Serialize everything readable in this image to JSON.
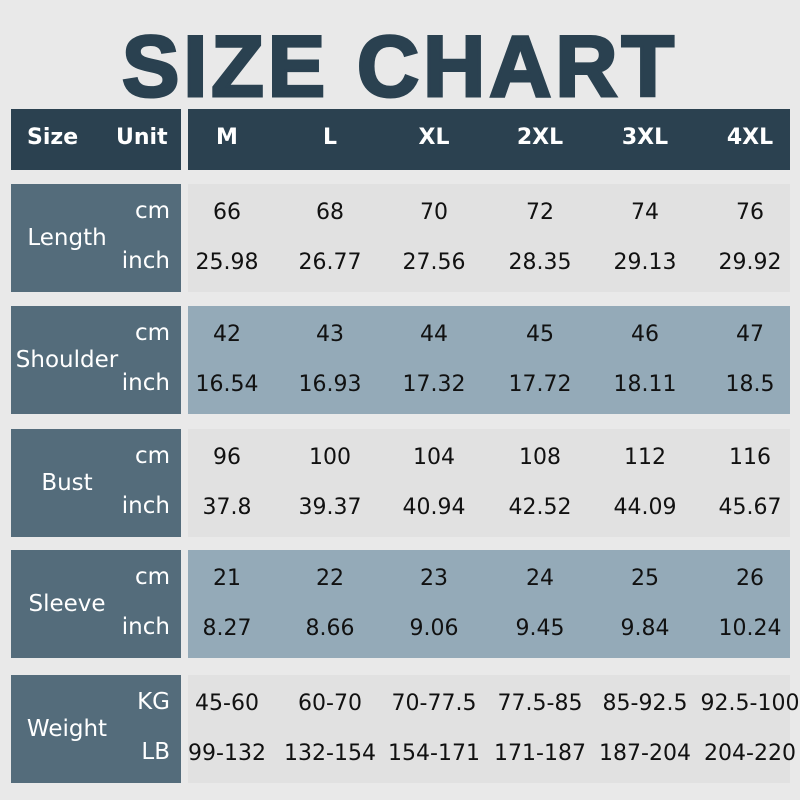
{
  "title": "SIZE CHART",
  "header": {
    "size": "Size",
    "unit": "Unit",
    "sizes": [
      "M",
      "L",
      "XL",
      "2XL",
      "3XL",
      "4XL"
    ]
  },
  "rows": [
    {
      "label": "Length",
      "units": [
        "cm",
        "inch"
      ],
      "values": [
        [
          "66",
          "68",
          "70",
          "72",
          "74",
          "76"
        ],
        [
          "25.98",
          "26.77",
          "27.56",
          "28.35",
          "29.13",
          "29.92"
        ]
      ]
    },
    {
      "label": "Shoulder",
      "units": [
        "cm",
        "inch"
      ],
      "values": [
        [
          "42",
          "43",
          "44",
          "45",
          "46",
          "47"
        ],
        [
          "16.54",
          "16.93",
          "17.32",
          "17.72",
          "18.11",
          "18.5"
        ]
      ]
    },
    {
      "label": "Bust",
      "units": [
        "cm",
        "inch"
      ],
      "values": [
        [
          "96",
          "100",
          "104",
          "108",
          "112",
          "116"
        ],
        [
          "37.8",
          "39.37",
          "40.94",
          "42.52",
          "44.09",
          "45.67"
        ]
      ]
    },
    {
      "label": "Sleeve",
      "units": [
        "cm",
        "inch"
      ],
      "values": [
        [
          "21",
          "22",
          "23",
          "24",
          "25",
          "26"
        ],
        [
          "8.27",
          "8.66",
          "9.06",
          "9.45",
          "9.84",
          "10.24"
        ]
      ]
    },
    {
      "label": "Weight",
      "units": [
        "KG",
        "LB"
      ],
      "values": [
        [
          "45-60",
          "60-70",
          "70-77.5",
          "77.5-85",
          "85-92.5",
          "92.5-100"
        ],
        [
          "99-132",
          "132-154",
          "154-171",
          "171-187",
          "187-204",
          "204-220"
        ]
      ]
    }
  ],
  "colors": {
    "header": "#2b4150",
    "label_box": "#546c7b",
    "row_gray": "#e1e1e1",
    "row_blue": "#94aab8"
  }
}
